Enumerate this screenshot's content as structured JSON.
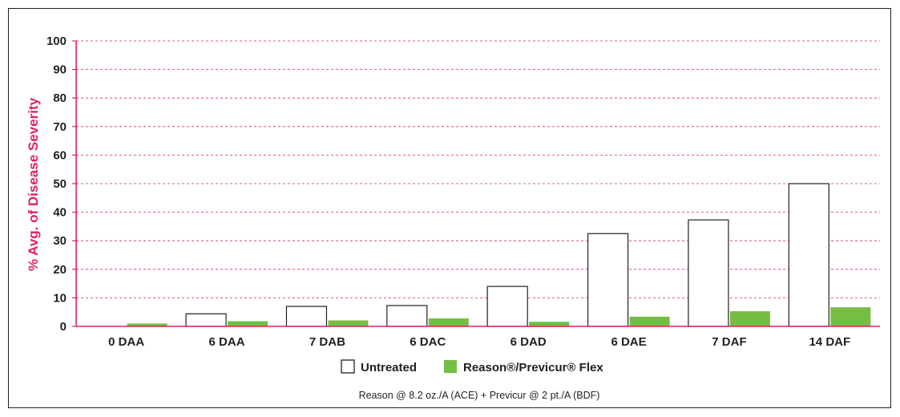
{
  "chart_data": {
    "type": "bar",
    "categories": [
      "0 DAA",
      "6 DAA",
      "7 DAB",
      "6 DAC",
      "6 DAD",
      "6 DAE",
      "7 DAF",
      "14 DAF"
    ],
    "series": [
      {
        "name": "Untreated",
        "values": [
          0,
          4.4,
          7.0,
          7.3,
          14.0,
          32.5,
          37.3,
          50.0
        ],
        "color": "#ffffff"
      },
      {
        "name": "Reason®/Previcur® Flex",
        "values": [
          1.0,
          1.8,
          2.1,
          2.8,
          1.6,
          3.4,
          5.3,
          6.7
        ],
        "color": "#76bd43"
      }
    ],
    "ylabel": "% Avg. of Disease Severity",
    "ylim": [
      0,
      100
    ],
    "yticks": [
      0,
      10,
      20,
      30,
      40,
      50,
      60,
      70,
      80,
      90,
      100
    ],
    "grid": true,
    "legend": "bottom-center",
    "footnote": "Reason @ 8.2 oz./A (ACE) + Previcur @ 2 pt./A (BDF)",
    "colors": {
      "axis": "#e0226a",
      "grid": "#e0226a",
      "bar_outline": "#231f20",
      "text": "#231f20"
    }
  }
}
